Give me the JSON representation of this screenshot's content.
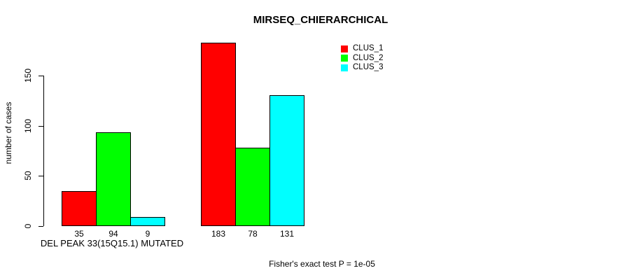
{
  "title": "MIRSEQ_CHIERARCHICAL",
  "y_axis": {
    "label": "number of cases",
    "ticks": [
      0,
      50,
      100,
      150
    ]
  },
  "x_axis": {
    "label": "DEL PEAK 33(15Q15.1) MUTATED"
  },
  "footer": {
    "text": "Fisher's exact test P = 1e-05"
  },
  "legend": {
    "position": "top-right",
    "entries": [
      {
        "label": "CLUS_1",
        "color": "#ff0000"
      },
      {
        "label": "CLUS_2",
        "color": "#00ff00"
      },
      {
        "label": "CLUS_3",
        "color": "#00ffff"
      }
    ]
  },
  "chart_data": {
    "type": "bar",
    "title": "MIRSEQ_CHIERARCHICAL",
    "xlabel": "DEL PEAK 33(15Q15.1) MUTATED",
    "ylabel": "number of cases",
    "ylim": [
      0,
      190
    ],
    "yticks": [
      0,
      50,
      100,
      150
    ],
    "grid": false,
    "legend_position": "top-right",
    "group_labels": [
      "DEL PEAK 33(15Q15.1) MUTATED",
      ""
    ],
    "series": [
      {
        "name": "CLUS_1",
        "color": "#ff0000",
        "values": [
          35,
          183
        ]
      },
      {
        "name": "CLUS_2",
        "color": "#00ff00",
        "values": [
          94,
          78
        ]
      },
      {
        "name": "CLUS_3",
        "color": "#00ffff",
        "values": [
          9,
          131
        ]
      }
    ],
    "bar_value_labels": [
      [
        35,
        94,
        9
      ],
      [
        183,
        78,
        131
      ]
    ]
  }
}
